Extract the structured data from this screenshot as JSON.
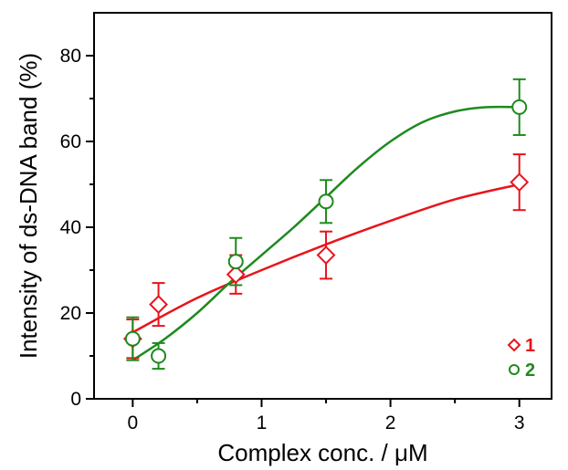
{
  "chart_data": {
    "type": "scatter",
    "title": "",
    "xlabel": "Complex conc. / μM",
    "ylabel": "Intensity of ds-DNA band (%)",
    "xlim": [
      -0.3,
      3.25
    ],
    "ylim": [
      0,
      90
    ],
    "x_ticks": [
      0,
      1,
      2,
      3
    ],
    "x_tick_labels": [
      "0",
      "1",
      "2",
      "3"
    ],
    "y_ticks": [
      0,
      20,
      40,
      60,
      80
    ],
    "y_tick_labels": [
      "0",
      "20",
      "40",
      "60",
      "80"
    ],
    "grid": false,
    "legend_position": "bottom-right",
    "series": [
      {
        "name": "1",
        "marker": "diamond",
        "color": "#e8141c",
        "x": [
          0,
          0.2,
          0.8,
          1.5,
          3
        ],
        "y": [
          14,
          22,
          29,
          33.5,
          50.5
        ],
        "error": [
          4.5,
          5,
          4.5,
          5.5,
          6.5
        ],
        "fit_x": [
          0,
          0.5,
          1.0,
          1.5,
          2.0,
          2.5,
          3.0
        ],
        "fit_y": [
          15.5,
          23.5,
          30,
          36,
          41.5,
          46.5,
          50
        ]
      },
      {
        "name": "2",
        "marker": "circle",
        "color": "#1e8a1e",
        "x": [
          0,
          0.2,
          0.8,
          1.5,
          3
        ],
        "y": [
          14,
          10,
          32,
          46,
          68
        ],
        "error": [
          5,
          3,
          5.5,
          5,
          6.5
        ],
        "fit_x": [
          0,
          0.25,
          0.5,
          0.75,
          1.0,
          1.25,
          1.5,
          1.75,
          2.0,
          2.25,
          2.5,
          2.75,
          3.0
        ],
        "fit_y": [
          9,
          14,
          20,
          27,
          33.5,
          40,
          47,
          54,
          60,
          64.5,
          67,
          68,
          68
        ]
      }
    ]
  }
}
